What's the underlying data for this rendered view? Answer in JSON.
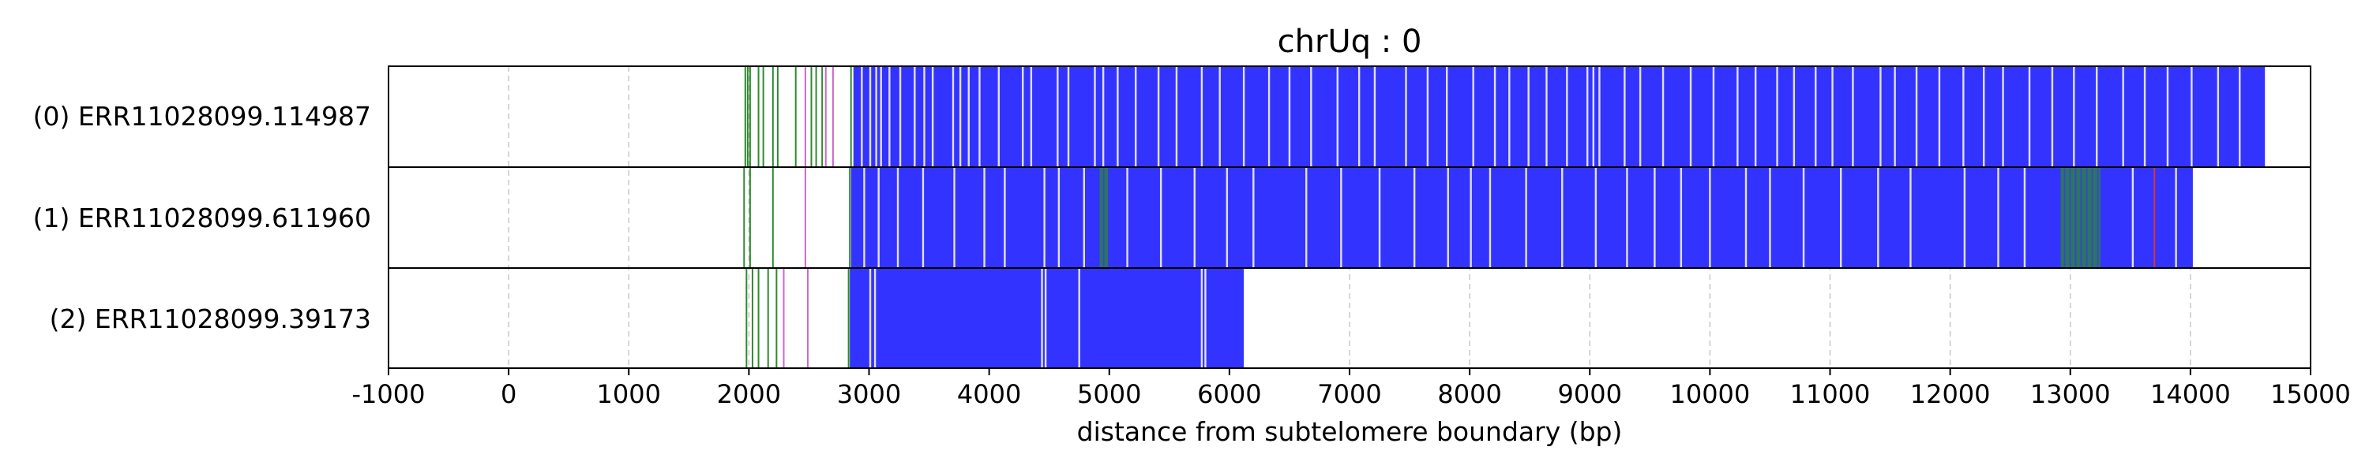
{
  "chart_data": {
    "type": "bar",
    "title": "chrUq : 0",
    "xlabel": "distance from subtelomere boundary (bp)",
    "ylabel": "",
    "xlim": [
      -1000,
      15000
    ],
    "x_ticks": [
      -1000,
      0,
      1000,
      2000,
      3000,
      4000,
      5000,
      6000,
      7000,
      8000,
      9000,
      10000,
      11000,
      12000,
      13000,
      14000,
      15000
    ],
    "x_tick_labels": [
      "-1000",
      "0",
      "1000",
      "2000",
      "3000",
      "4000",
      "5000",
      "6000",
      "7000",
      "8000",
      "9000",
      "10000",
      "11000",
      "12000",
      "13000",
      "14000",
      "15000"
    ],
    "grid": "x dashed",
    "colors": {
      "block": "#3333ff",
      "green_mark": "#2e8b2e",
      "purple_mark": "#cc66cc",
      "red_mark": "#dd3333",
      "white_gap": "#ffffff",
      "grid": "#c8c8c8",
      "frame": "#000000"
    },
    "reads": [
      {
        "label": "(0) ERR11028099.114987",
        "start": 2870,
        "end": 14620,
        "marks": [
          {
            "x": 1970,
            "color": "green"
          },
          {
            "x": 1990,
            "color": "green"
          },
          {
            "x": 2010,
            "color": "green"
          },
          {
            "x": 2080,
            "color": "green"
          },
          {
            "x": 2120,
            "color": "green"
          },
          {
            "x": 2200,
            "color": "green"
          },
          {
            "x": 2240,
            "color": "green"
          },
          {
            "x": 2390,
            "color": "green"
          },
          {
            "x": 2470,
            "color": "purple"
          },
          {
            "x": 2520,
            "color": "green"
          },
          {
            "x": 2560,
            "color": "green"
          },
          {
            "x": 2610,
            "color": "green"
          },
          {
            "x": 2640,
            "color": "purple"
          },
          {
            "x": 2700,
            "color": "purple"
          },
          {
            "x": 2850,
            "color": "green"
          }
        ],
        "gaps": [
          2940,
          3010,
          3060,
          3100,
          3170,
          3260,
          3380,
          3460,
          3530,
          3700,
          3760,
          3830,
          3920,
          4080,
          4280,
          4350,
          4570,
          4660,
          4880,
          4950,
          5070,
          5220,
          5410,
          5560,
          5770,
          5920,
          6120,
          6330,
          6500,
          6680,
          6900,
          7080,
          7210,
          7470,
          7650,
          7810,
          8030,
          8210,
          8330,
          8490,
          8640,
          8810,
          8980,
          9030,
          9080,
          9290,
          9420,
          9610,
          9840,
          10030,
          10230,
          10380,
          10560,
          10700,
          10880,
          11020,
          11190,
          11420,
          11540,
          11720,
          11910,
          12110,
          12280,
          12440,
          12660,
          12850,
          13030,
          13220,
          13440,
          13620,
          13810,
          14010,
          14230,
          14410
        ]
      },
      {
        "label": "(1) ERR11028099.611960",
        "start": 2850,
        "end": 14020,
        "marks": [
          {
            "x": 1960,
            "color": "green"
          },
          {
            "x": 2010,
            "color": "green"
          },
          {
            "x": 2200,
            "color": "green"
          },
          {
            "x": 2470,
            "color": "purple"
          },
          {
            "x": 2840,
            "color": "green"
          }
        ],
        "green_segments": [
          [
            4920,
            4990
          ],
          [
            12920,
            13250
          ]
        ],
        "red_marks": [
          13700
        ],
        "gaps": [
          2960,
          3080,
          3240,
          3450,
          3710,
          3960,
          4130,
          4460,
          4580,
          4790,
          5150,
          5430,
          5710,
          5980,
          6200,
          6640,
          6930,
          7250,
          7540,
          7820,
          8010,
          8170,
          8470,
          8770,
          9050,
          9310,
          9540,
          9760,
          10000,
          10300,
          10500,
          10780,
          11090,
          11400,
          11670,
          12120,
          12400,
          12620,
          13520,
          13880
        ]
      },
      {
        "label": "(2) ERR11028099.39173",
        "start": 2840,
        "end": 6120,
        "marks": [
          {
            "x": 1980,
            "color": "green"
          },
          {
            "x": 2030,
            "color": "green"
          },
          {
            "x": 2080,
            "color": "green"
          },
          {
            "x": 2160,
            "color": "green"
          },
          {
            "x": 2230,
            "color": "green"
          },
          {
            "x": 2290,
            "color": "purple"
          },
          {
            "x": 2490,
            "color": "purple"
          },
          {
            "x": 2830,
            "color": "green"
          }
        ],
        "gaps": [
          3010,
          3050,
          4440,
          4470,
          4750,
          5770,
          5800
        ]
      }
    ]
  }
}
